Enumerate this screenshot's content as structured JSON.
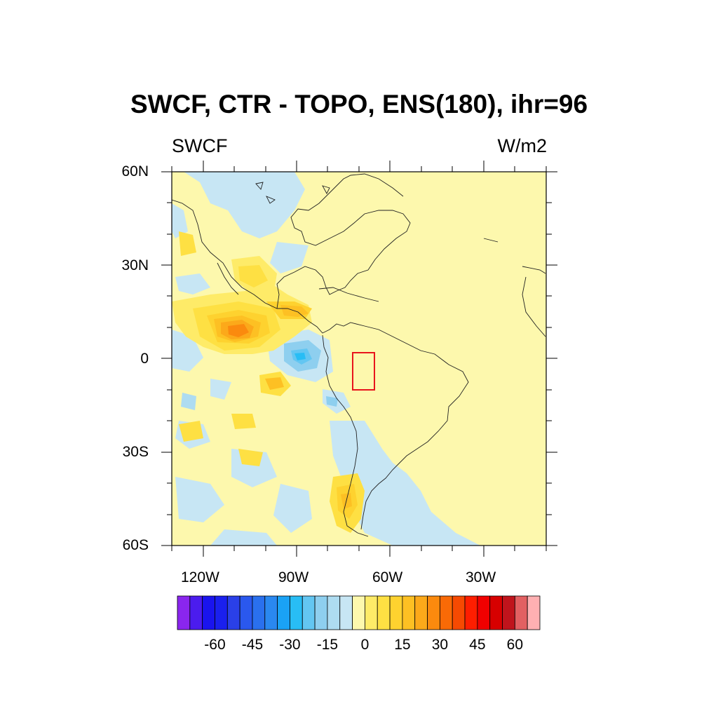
{
  "title": "SWCF, CTR - TOPO, ENS(180), ihr=96",
  "left_string": "SWCF",
  "right_string": "W/m2",
  "map": {
    "lat_range": [
      -60,
      60
    ],
    "lon_range": [
      -135,
      -15
    ],
    "lat_labels": [
      "60N",
      "30N",
      "0",
      "30S",
      "60S"
    ],
    "lon_labels": [
      "120W",
      "90W",
      "60W",
      "30W"
    ],
    "highlight_box": {
      "lon": [
        -72.5,
        -65
      ],
      "lat": [
        -10,
        2
      ],
      "color": "#e8141c"
    }
  },
  "colorbar": {
    "labels": [
      "-60",
      "-45",
      "-30",
      "-15",
      "0",
      "15",
      "30",
      "45",
      "60"
    ],
    "levels": [
      -75,
      -70,
      -65,
      -60,
      -55,
      -50,
      -45,
      -40,
      -35,
      -30,
      -25,
      -20,
      -15,
      -10,
      -5,
      0,
      5,
      10,
      15,
      20,
      25,
      30,
      35,
      40,
      45,
      50,
      55,
      60,
      65,
      70,
      75
    ],
    "colors": [
      "#8a26ee",
      "#4b1cee",
      "#1a14ee",
      "#1a20ee",
      "#2a40e8",
      "#2a58ee",
      "#2a70ee",
      "#2a88f0",
      "#1aa2f5",
      "#28bdf5",
      "#63c6f2",
      "#8ecfef",
      "#aedcf1",
      "#c7e6f4",
      "#fdf8ad",
      "#feeb68",
      "#fee043",
      "#fed22f",
      "#fdc023",
      "#fca91a",
      "#fb8a0e",
      "#f96a06",
      "#f64a02",
      "#fe1e00",
      "#f00000",
      "#d70000",
      "#c0141c",
      "#e26062",
      "#ffb0b2"
    ]
  }
}
